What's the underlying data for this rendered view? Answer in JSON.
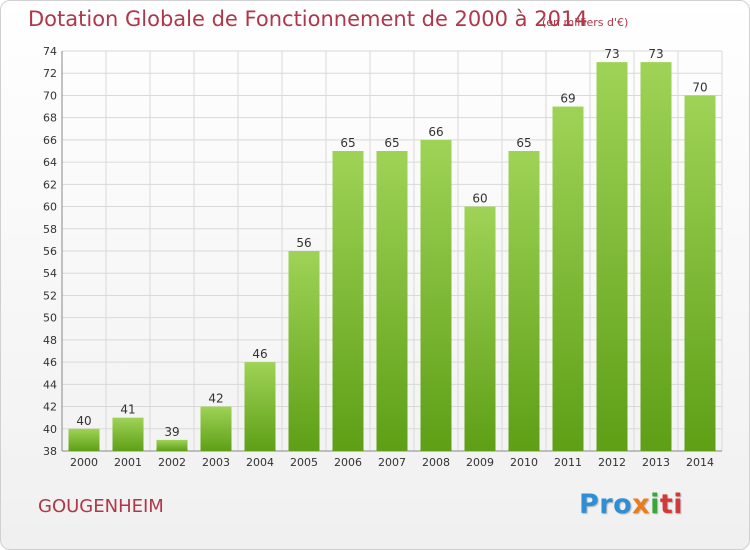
{
  "title": "Dotation Globale de Fonctionnement de 2000 à 2014",
  "subtitle": "(en milliers d'€)",
  "place_name": "GOUGENHEIM",
  "logo": {
    "p1": "Pro",
    "p2": "x",
    "p3": "i",
    "p4": "ti"
  },
  "colors": {
    "bar_top": "#9fd357",
    "bar_bottom": "#5e9f16",
    "title": "#b0374a",
    "grid": "#d9d9d9"
  },
  "chart_data": {
    "type": "bar",
    "title": "Dotation Globale de Fonctionnement de 2000 à 2014",
    "subtitle": "(en milliers d'€)",
    "categories": [
      "2000",
      "2001",
      "2002",
      "2003",
      "2004",
      "2005",
      "2006",
      "2007",
      "2008",
      "2009",
      "2010",
      "2011",
      "2012",
      "2013",
      "2014"
    ],
    "values": [
      40,
      41,
      39,
      42,
      46,
      56,
      65,
      65,
      66,
      60,
      65,
      69,
      73,
      73,
      70
    ],
    "ylim": [
      38,
      74
    ],
    "yticks": [
      38,
      40,
      42,
      44,
      46,
      48,
      50,
      52,
      54,
      56,
      58,
      60,
      62,
      64,
      66,
      68,
      70,
      72,
      74
    ],
    "grid": true,
    "legend": "none"
  }
}
